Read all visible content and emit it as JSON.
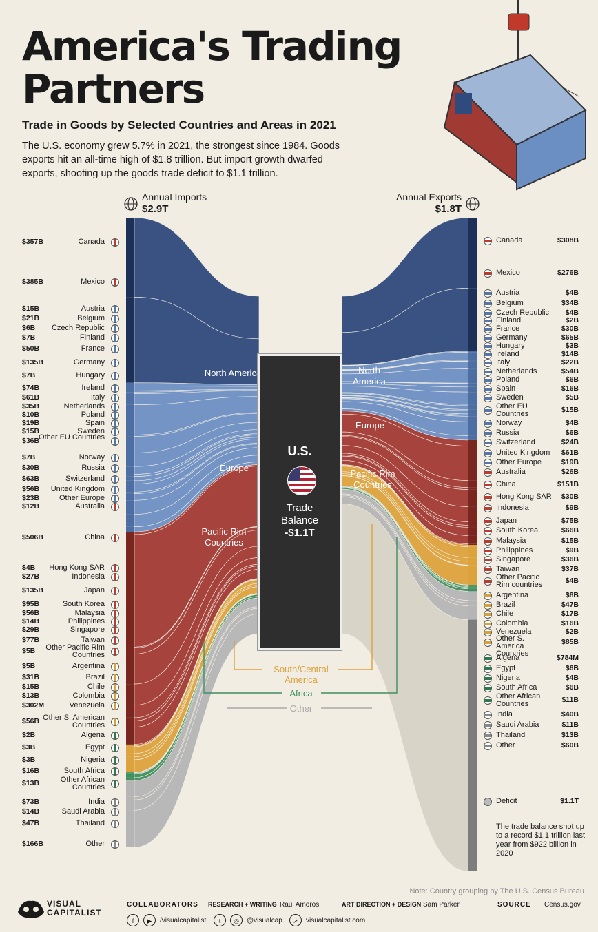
{
  "title": "America's Trading Partners",
  "subtitle": "Trade in Goods by Selected Countries and Areas in 2021",
  "intro": "The U.S. economy grew 5.7% in 2021, the strongest since 1984. Goods exports hit an all-time high of $1.8 trillion. But import growth dwarfed exports, shooting up the goods trade deficit to $1.1 trillion.",
  "imports_header": {
    "label": "Annual Imports",
    "total": "$2.9T"
  },
  "exports_header": {
    "label": "Annual Exports",
    "total": "$1.8T"
  },
  "center": {
    "country": "U.S.",
    "line1": "Trade",
    "line2": "Balance",
    "value": "-$1.1T"
  },
  "groups": {
    "north_america": "North America",
    "europe": "Europe",
    "pacific_rim": "Pacific Rim Countries",
    "south_central": "South/Central America",
    "africa": "Africa",
    "other": "Other"
  },
  "deficit_note": "The trade balance shot up to a record $1.1 trillion last year from $922 billion in 2020",
  "footer": {
    "note": "Note: Country grouping by The U.S. Census Bureau",
    "brand": "VISUAL CAPITALIST",
    "collaborators": "COLLABORATORS",
    "rw_label": "RESEARCH + WRITING",
    "rw_name": "Raul Amoros",
    "ad_label": "ART DIRECTION + DESIGN",
    "ad_name": "Sam Parker",
    "source_label": "SOURCE",
    "source": "Census.gov",
    "social1": "/visualcapitalist",
    "social2": "@visualcap",
    "site": "visualcapitalist.com"
  },
  "colors": {
    "north_america": "#2f4a7c",
    "europe": "#6b8fc3",
    "pacific_rim": "#a23a34",
    "south_central": "#dca23c",
    "africa": "#3f8f5f",
    "other": "#b5b5b5",
    "deficit": "#7d7d7d"
  },
  "chart_data": {
    "type": "table",
    "imports": [
      {
        "country": "Canada",
        "value": "$357B",
        "group": "north_america"
      },
      {
        "country": "Mexico",
        "value": "$385B",
        "group": "north_america"
      },
      {
        "country": "Austria",
        "value": "$15B",
        "group": "europe"
      },
      {
        "country": "Belgium",
        "value": "$21B",
        "group": "europe"
      },
      {
        "country": "Czech Republic",
        "value": "$6B",
        "group": "europe"
      },
      {
        "country": "Finland",
        "value": "$7B",
        "group": "europe"
      },
      {
        "country": "France",
        "value": "$50B",
        "group": "europe"
      },
      {
        "country": "Germany",
        "value": "$135B",
        "group": "europe"
      },
      {
        "country": "Hungary",
        "value": "$7B",
        "group": "europe"
      },
      {
        "country": "Ireland",
        "value": "$74B",
        "group": "europe"
      },
      {
        "country": "Italy",
        "value": "$61B",
        "group": "europe"
      },
      {
        "country": "Netherlands",
        "value": "$35B",
        "group": "europe"
      },
      {
        "country": "Poland",
        "value": "$10B",
        "group": "europe"
      },
      {
        "country": "Spain",
        "value": "$19B",
        "group": "europe"
      },
      {
        "country": "Sweden",
        "value": "$15B",
        "group": "europe"
      },
      {
        "country": "Other EU Countries",
        "value": "$36B",
        "group": "europe"
      },
      {
        "country": "Norway",
        "value": "$7B",
        "group": "europe"
      },
      {
        "country": "Russia",
        "value": "$30B",
        "group": "europe"
      },
      {
        "country": "Switzerland",
        "value": "$63B",
        "group": "europe"
      },
      {
        "country": "United Kingdom",
        "value": "$56B",
        "group": "europe"
      },
      {
        "country": "Other Europe",
        "value": "$23B",
        "group": "europe"
      },
      {
        "country": "Australia",
        "value": "$12B",
        "group": "pacific_rim"
      },
      {
        "country": "China",
        "value": "$506B",
        "group": "pacific_rim"
      },
      {
        "country": "Hong Kong SAR",
        "value": "$4B",
        "group": "pacific_rim"
      },
      {
        "country": "Indonesia",
        "value": "$27B",
        "group": "pacific_rim"
      },
      {
        "country": "Japan",
        "value": "$135B",
        "group": "pacific_rim"
      },
      {
        "country": "South Korea",
        "value": "$95B",
        "group": "pacific_rim"
      },
      {
        "country": "Malaysia",
        "value": "$56B",
        "group": "pacific_rim"
      },
      {
        "country": "Philippines",
        "value": "$14B",
        "group": "pacific_rim"
      },
      {
        "country": "Singapore",
        "value": "$29B",
        "group": "pacific_rim"
      },
      {
        "country": "Taiwan",
        "value": "$77B",
        "group": "pacific_rim"
      },
      {
        "country": "Other Pacific Rim Countries",
        "value": "$5B",
        "group": "pacific_rim"
      },
      {
        "country": "Argentina",
        "value": "$5B",
        "group": "south_central"
      },
      {
        "country": "Brazil",
        "value": "$31B",
        "group": "south_central"
      },
      {
        "country": "Chile",
        "value": "$15B",
        "group": "south_central"
      },
      {
        "country": "Colombia",
        "value": "$13B",
        "group": "south_central"
      },
      {
        "country": "Venezuela",
        "value": "$302M",
        "group": "south_central"
      },
      {
        "country": "Other S. American Countries",
        "value": "$56B",
        "group": "south_central"
      },
      {
        "country": "Algeria",
        "value": "$2B",
        "group": "africa"
      },
      {
        "country": "Egypt",
        "value": "$3B",
        "group": "africa"
      },
      {
        "country": "Nigeria",
        "value": "$3B",
        "group": "africa"
      },
      {
        "country": "South Africa",
        "value": "$16B",
        "group": "africa"
      },
      {
        "country": "Other African Countries",
        "value": "$13B",
        "group": "africa"
      },
      {
        "country": "India",
        "value": "$73B",
        "group": "other"
      },
      {
        "country": "Saudi Arabia",
        "value": "$14B",
        "group": "other"
      },
      {
        "country": "Thailand",
        "value": "$47B",
        "group": "other"
      },
      {
        "country": "Other",
        "value": "$166B",
        "group": "other"
      }
    ],
    "exports": [
      {
        "country": "Canada",
        "value": "$308B",
        "group": "north_america"
      },
      {
        "country": "Mexico",
        "value": "$276B",
        "group": "north_america"
      },
      {
        "country": "Austria",
        "value": "$4B",
        "group": "europe"
      },
      {
        "country": "Belgium",
        "value": "$34B",
        "group": "europe"
      },
      {
        "country": "Czech Republic",
        "value": "$4B",
        "group": "europe"
      },
      {
        "country": "Finland",
        "value": "$2B",
        "group": "europe"
      },
      {
        "country": "France",
        "value": "$30B",
        "group": "europe"
      },
      {
        "country": "Germany",
        "value": "$65B",
        "group": "europe"
      },
      {
        "country": "Hungary",
        "value": "$3B",
        "group": "europe"
      },
      {
        "country": "Ireland",
        "value": "$14B",
        "group": "europe"
      },
      {
        "country": "Italy",
        "value": "$22B",
        "group": "europe"
      },
      {
        "country": "Netherlands",
        "value": "$54B",
        "group": "europe"
      },
      {
        "country": "Poland",
        "value": "$6B",
        "group": "europe"
      },
      {
        "country": "Spain",
        "value": "$16B",
        "group": "europe"
      },
      {
        "country": "Sweden",
        "value": "$5B",
        "group": "europe"
      },
      {
        "country": "Other EU Countries",
        "value": "$15B",
        "group": "europe"
      },
      {
        "country": "Norway",
        "value": "$4B",
        "group": "europe"
      },
      {
        "country": "Russia",
        "value": "$6B",
        "group": "europe"
      },
      {
        "country": "Switzerland",
        "value": "$24B",
        "group": "europe"
      },
      {
        "country": "United Kingdom",
        "value": "$61B",
        "group": "europe"
      },
      {
        "country": "Other Europe",
        "value": "$19B",
        "group": "europe"
      },
      {
        "country": "Australia",
        "value": "$26B",
        "group": "pacific_rim"
      },
      {
        "country": "China",
        "value": "$151B",
        "group": "pacific_rim"
      },
      {
        "country": "Hong Kong SAR",
        "value": "$30B",
        "group": "pacific_rim"
      },
      {
        "country": "Indonesia",
        "value": "$9B",
        "group": "pacific_rim"
      },
      {
        "country": "Japan",
        "value": "$75B",
        "group": "pacific_rim"
      },
      {
        "country": "South Korea",
        "value": "$66B",
        "group": "pacific_rim"
      },
      {
        "country": "Malaysia",
        "value": "$15B",
        "group": "pacific_rim"
      },
      {
        "country": "Philippines",
        "value": "$9B",
        "group": "pacific_rim"
      },
      {
        "country": "Singapore",
        "value": "$36B",
        "group": "pacific_rim"
      },
      {
        "country": "Taiwan",
        "value": "$37B",
        "group": "pacific_rim"
      },
      {
        "country": "Other Pacific Rim countries",
        "value": "$4B",
        "group": "pacific_rim"
      },
      {
        "country": "Argentina",
        "value": "$8B",
        "group": "south_central"
      },
      {
        "country": "Brazil",
        "value": "$47B",
        "group": "south_central"
      },
      {
        "country": "Chile",
        "value": "$17B",
        "group": "south_central"
      },
      {
        "country": "Colombia",
        "value": "$16B",
        "group": "south_central"
      },
      {
        "country": "Venezuela",
        "value": "$2B",
        "group": "south_central"
      },
      {
        "country": "Other S. America Countries",
        "value": "$85B",
        "group": "south_central"
      },
      {
        "country": "Algeria",
        "value": "$784M",
        "group": "africa"
      },
      {
        "country": "Egypt",
        "value": "$6B",
        "group": "africa"
      },
      {
        "country": "Nigeria",
        "value": "$4B",
        "group": "africa"
      },
      {
        "country": "South Africa",
        "value": "$6B",
        "group": "africa"
      },
      {
        "country": "Other African Countries",
        "value": "$11B",
        "group": "africa"
      },
      {
        "country": "India",
        "value": "$40B",
        "group": "other"
      },
      {
        "country": "Saudi Arabia",
        "value": "$11B",
        "group": "other"
      },
      {
        "country": "Thailand",
        "value": "$13B",
        "group": "other"
      },
      {
        "country": "Other",
        "value": "$60B",
        "group": "other"
      },
      {
        "country": "Deficit",
        "value": "$1.1T",
        "group": "deficit"
      }
    ]
  }
}
